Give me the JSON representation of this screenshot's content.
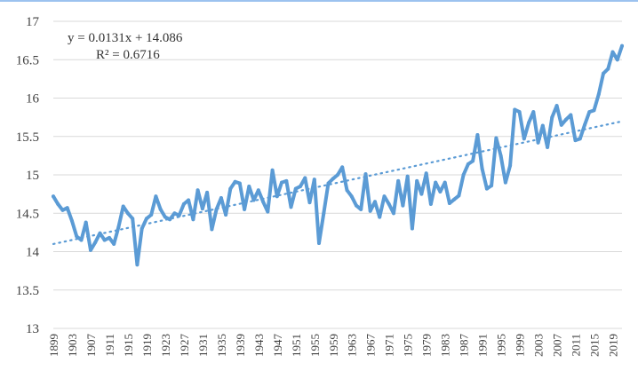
{
  "chart_data": {
    "type": "line",
    "x": [
      1899,
      1900,
      1901,
      1902,
      1903,
      1904,
      1905,
      1906,
      1907,
      1908,
      1909,
      1910,
      1911,
      1912,
      1913,
      1914,
      1915,
      1916,
      1917,
      1918,
      1919,
      1920,
      1921,
      1922,
      1923,
      1924,
      1925,
      1926,
      1927,
      1928,
      1929,
      1930,
      1931,
      1932,
      1933,
      1934,
      1935,
      1936,
      1937,
      1938,
      1939,
      1940,
      1941,
      1942,
      1943,
      1944,
      1945,
      1946,
      1947,
      1948,
      1949,
      1950,
      1951,
      1952,
      1953,
      1954,
      1955,
      1956,
      1957,
      1958,
      1959,
      1960,
      1961,
      1962,
      1963,
      1964,
      1965,
      1966,
      1967,
      1968,
      1969,
      1970,
      1971,
      1972,
      1973,
      1974,
      1975,
      1976,
      1977,
      1978,
      1979,
      1980,
      1981,
      1982,
      1983,
      1984,
      1985,
      1986,
      1987,
      1988,
      1989,
      1990,
      1991,
      1992,
      1993,
      1994,
      1995,
      1996,
      1997,
      1998,
      1999,
      2000,
      2001,
      2002,
      2003,
      2004,
      2005,
      2006,
      2007,
      2008,
      2009,
      2010,
      2011,
      2012,
      2013,
      2014,
      2015,
      2016,
      2017,
      2018,
      2019,
      2020,
      2021
    ],
    "series": [
      {
        "values": [
          14.72,
          14.62,
          14.54,
          14.57,
          14.4,
          14.2,
          14.15,
          14.38,
          14.02,
          14.12,
          14.24,
          14.15,
          14.18,
          14.1,
          14.32,
          14.59,
          14.5,
          14.43,
          13.83,
          14.3,
          14.43,
          14.48,
          14.72,
          14.55,
          14.45,
          14.42,
          14.5,
          14.47,
          14.62,
          14.67,
          14.42,
          14.8,
          14.56,
          14.77,
          14.29,
          14.55,
          14.7,
          14.48,
          14.82,
          14.91,
          14.89,
          14.55,
          14.85,
          14.67,
          14.8,
          14.65,
          14.52,
          15.06,
          14.72,
          14.9,
          14.92,
          14.58,
          14.82,
          14.85,
          14.96,
          14.64,
          14.94,
          14.11,
          14.5,
          14.89,
          14.95,
          15.0,
          15.1,
          14.8,
          14.72,
          14.6,
          14.55,
          15.01,
          14.53,
          14.65,
          14.45,
          14.72,
          14.62,
          14.5,
          14.92,
          14.6,
          14.98,
          14.3,
          14.92,
          14.75,
          15.02,
          14.62,
          14.9,
          14.78,
          14.9,
          14.63,
          14.68,
          14.73,
          15.0,
          15.14,
          15.18,
          15.52,
          15.08,
          14.82,
          14.86,
          15.48,
          15.25,
          14.9,
          15.12,
          15.85,
          15.82,
          15.47,
          15.68,
          15.82,
          15.42,
          15.64,
          15.36,
          15.75,
          15.9,
          15.65,
          15.72,
          15.78,
          15.45,
          15.47,
          15.65,
          15.82,
          15.84,
          16.05,
          16.32,
          16.38,
          16.6,
          16.5,
          16.68
        ]
      }
    ],
    "trendline": {
      "type": "linear",
      "slope": 0.0131,
      "intercept": 14.086,
      "equation": "y = 0.0131x + 14.086",
      "r_squared": "R² = 0.6716"
    },
    "title": "",
    "xlabel": "",
    "ylabel": "",
    "ylim": [
      13,
      17
    ],
    "y_ticks": [
      "13",
      "13.5",
      "14",
      "14.5",
      "15",
      "15.5",
      "16",
      "16.5",
      "17"
    ],
    "x_ticks": [
      "1899",
      "1903",
      "1907",
      "1911",
      "1915",
      "1919",
      "1923",
      "1927",
      "1931",
      "1935",
      "1939",
      "1943",
      "1947",
      "1951",
      "1955",
      "1959",
      "1963",
      "1967",
      "1971",
      "1975",
      "1979",
      "1983",
      "1987",
      "1991",
      "1995",
      "1999",
      "2003",
      "2007",
      "2011",
      "2015",
      "2019"
    ],
    "grid": "horizontal",
    "legend": "none",
    "colors": {
      "line": "#5b9bd5",
      "trendline": "#5b9bd5",
      "grid": "#d9d9d9",
      "text": "#404040"
    }
  }
}
